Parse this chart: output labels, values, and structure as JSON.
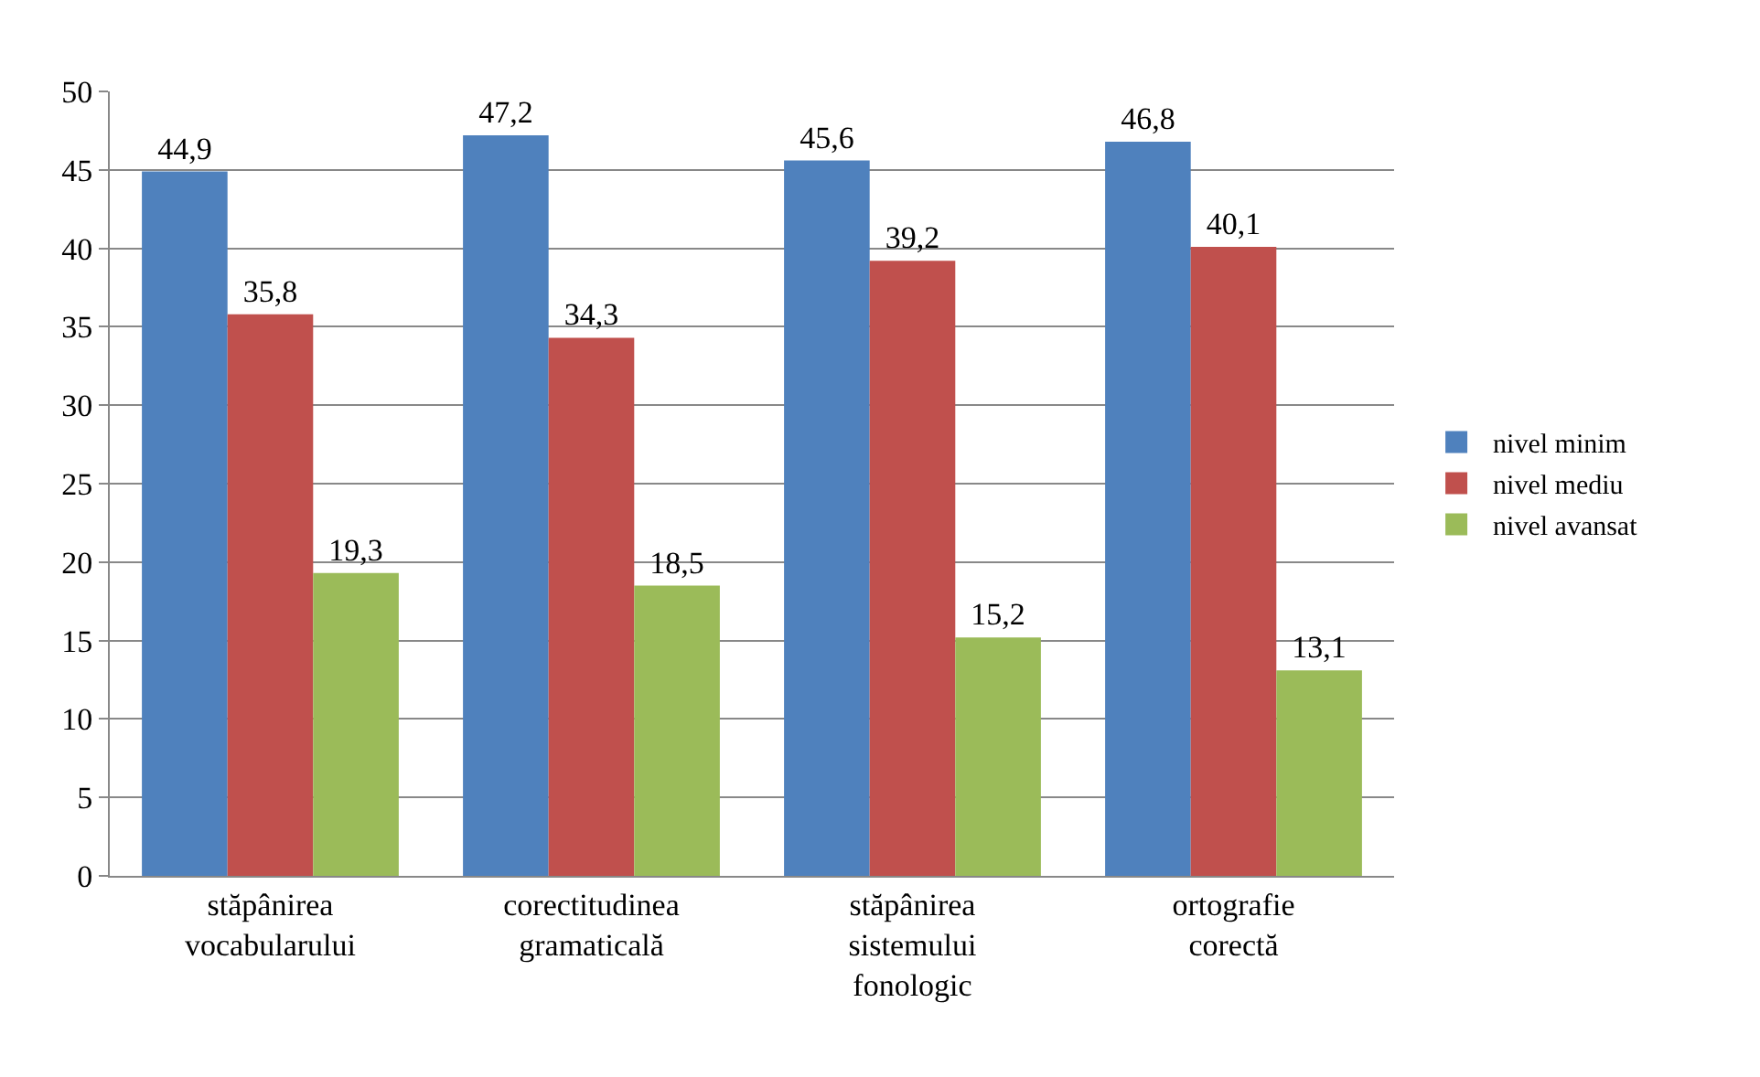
{
  "chart_data": {
    "type": "bar",
    "categories": [
      "stăpânirea vocabularului",
      "corectitudinea gramaticală",
      "stăpânirea sistemului fonologic",
      "ortografie corectă"
    ],
    "series": [
      {
        "name": "nivel minim",
        "color": "#4f81bd",
        "values": [
          44.9,
          47.2,
          45.6,
          46.8
        ],
        "value_labels": [
          "44,9",
          "47,2",
          "45,6",
          "46,8"
        ]
      },
      {
        "name": "nivel mediu",
        "color": "#c0504d",
        "values": [
          35.8,
          34.3,
          39.2,
          40.1
        ],
        "value_labels": [
          "35,8",
          "34,3",
          "39,2",
          "40,1"
        ]
      },
      {
        "name": "nivel avansat",
        "color": "#9bbb59",
        "values": [
          19.3,
          18.5,
          15.2,
          13.1
        ],
        "value_labels": [
          "19,3",
          "18,5",
          "15,2",
          "13,1"
        ]
      }
    ],
    "ylim": [
      0,
      50
    ],
    "yticks": [
      0,
      5,
      10,
      15,
      20,
      25,
      30,
      35,
      40,
      45,
      50
    ],
    "grid": "y",
    "legend": "right"
  }
}
